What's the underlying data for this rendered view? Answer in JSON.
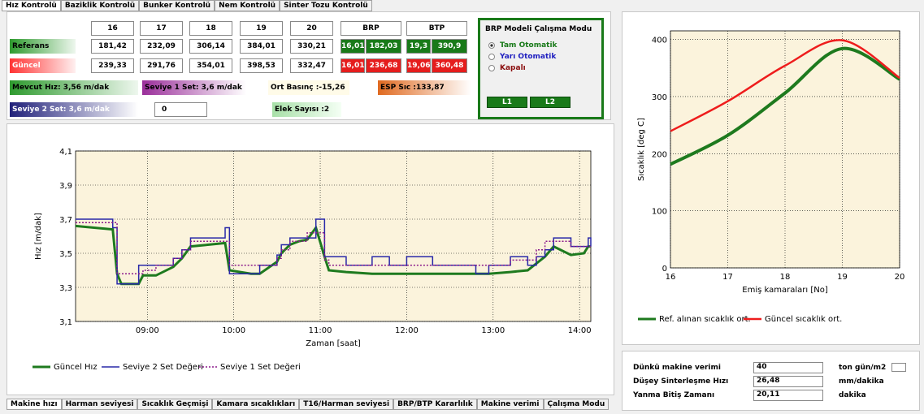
{
  "tabs_top": [
    "Hız Kontrolü",
    "Baziklik Kontrolü",
    "Bunker Kontrolü",
    "Nem Kontrolü",
    "Sinter Tozu Kontrolü"
  ],
  "table": {
    "columns": [
      "16",
      "17",
      "18",
      "19",
      "20",
      "BRP",
      "BTP"
    ],
    "rows": [
      {
        "label": "Referans",
        "values": [
          "181,42",
          "232,09",
          "306,14",
          "384,01",
          "330,21"
        ],
        "brp": [
          "16,01",
          "182,03"
        ],
        "btp": [
          "19,3",
          "390,9"
        ]
      },
      {
        "label": "Güncel",
        "values": [
          "239,33",
          "291,76",
          "354,01",
          "398,53",
          "332,47"
        ],
        "brp": [
          "16,01",
          "236,68"
        ],
        "btp": [
          "19,06",
          "360,48"
        ]
      }
    ]
  },
  "status": {
    "mevcut": "Mevcut Hız: 3,56 m/dak",
    "seviye1": "Seviye 1 Set: 3,6 m/dak",
    "basinc": "Ort Basınç :-15,26",
    "esp": "ESP Sıc :133,87",
    "seviye2": "Seviye 2 Set: 3,6 m/dak",
    "input": "0",
    "elek": "Elek Sayısı :2"
  },
  "mode_panel": {
    "title": "BRP Modeli Çalışma Modu",
    "options": [
      "Tam Otomatik",
      "Yarı Otomatik",
      "Kapalı"
    ],
    "buttons": [
      "L1",
      "L2"
    ]
  },
  "chart_data": [
    {
      "type": "line",
      "xlabel": "Zaman [saat]",
      "ylabel": "Hız [m/dak]",
      "x": [
        8.17,
        8.6,
        8.65,
        8.7,
        8.9,
        8.95,
        9.1,
        9.3,
        9.4,
        9.5,
        9.7,
        9.9,
        9.95,
        10.2,
        10.3,
        10.5,
        10.55,
        10.65,
        10.75,
        10.85,
        10.95,
        11.05,
        11.1,
        11.3,
        11.6,
        11.8,
        12.0,
        12.3,
        12.5,
        12.8,
        12.95,
        13.2,
        13.4,
        13.5,
        13.6,
        13.7,
        13.9,
        14.05,
        14.1,
        14.13
      ],
      "xlim": [
        8.17,
        14.13
      ],
      "xticks": [
        {
          "value": 9,
          "label": "09:00"
        },
        {
          "value": 10,
          "label": "10:00"
        },
        {
          "value": 11,
          "label": "11:00"
        },
        {
          "value": 12,
          "label": "12:00"
        },
        {
          "value": 13,
          "label": "13:00"
        },
        {
          "value": 14,
          "label": "14:00"
        }
      ],
      "ylim": [
        3.1,
        4.1
      ],
      "yticks": [
        {
          "value": 3.1,
          "label": "3,1"
        },
        {
          "value": 3.3,
          "label": "3,3"
        },
        {
          "value": 3.5,
          "label": "3,5"
        },
        {
          "value": 3.7,
          "label": "3,7"
        },
        {
          "value": 3.9,
          "label": "3,9"
        },
        {
          "value": 4.1,
          "label": "4,1"
        }
      ],
      "grid": true,
      "plot_bg": "#fbf3dc",
      "series": [
        {
          "name": "Güncel Hız",
          "color": "#1e7a1e",
          "width": 3,
          "values": [
            3.66,
            3.64,
            3.38,
            3.32,
            3.32,
            3.37,
            3.37,
            3.42,
            3.47,
            3.54,
            3.55,
            3.56,
            3.4,
            3.38,
            3.38,
            3.45,
            3.5,
            3.55,
            3.57,
            3.58,
            3.65,
            3.48,
            3.4,
            3.39,
            3.38,
            3.38,
            3.38,
            3.38,
            3.38,
            3.38,
            3.38,
            3.39,
            3.4,
            3.44,
            3.48,
            3.54,
            3.49,
            3.5,
            3.54,
            3.54
          ]
        },
        {
          "name": "Seviye 2 Set Değeri",
          "color": "#2828a8",
          "width": 1.5,
          "step": true,
          "values": [
            3.7,
            3.65,
            3.32,
            3.32,
            3.43,
            3.43,
            3.43,
            3.47,
            3.52,
            3.59,
            3.59,
            3.65,
            3.38,
            3.38,
            3.43,
            3.49,
            3.55,
            3.59,
            3.59,
            3.59,
            3.7,
            3.48,
            3.48,
            3.43,
            3.48,
            3.43,
            3.48,
            3.43,
            3.43,
            3.38,
            3.43,
            3.48,
            3.43,
            3.48,
            3.52,
            3.59,
            3.54,
            3.54,
            3.59,
            3.54
          ]
        },
        {
          "name": "Seviye 1 Set Değeri",
          "color": "#8b1a8b",
          "width": 1.5,
          "step": true,
          "dotted": true,
          "values": [
            3.68,
            3.68,
            3.38,
            3.38,
            3.38,
            3.4,
            3.43,
            3.47,
            3.52,
            3.57,
            3.57,
            3.57,
            3.43,
            3.43,
            3.43,
            3.47,
            3.52,
            3.57,
            3.57,
            3.62,
            3.62,
            3.46,
            3.43,
            3.43,
            3.43,
            3.43,
            3.43,
            3.43,
            3.43,
            3.43,
            3.43,
            3.46,
            3.46,
            3.52,
            3.57,
            3.57,
            3.54,
            3.54,
            3.54,
            3.54
          ]
        }
      ]
    },
    {
      "type": "line",
      "xlabel": "Emiş kamaraları [No]",
      "ylabel": "Sıcaklık [deg C]",
      "x": [
        16,
        17,
        18,
        19,
        20
      ],
      "xlim": [
        16,
        20
      ],
      "xticks": [
        16,
        17,
        18,
        19,
        20
      ],
      "ylim": [
        0,
        415
      ],
      "yticks": [
        0,
        100,
        200,
        300,
        400
      ],
      "grid": true,
      "smooth": true,
      "plot_bg": "#fbf3dc",
      "series": [
        {
          "name": "Ref. alınan sıcaklık ort.",
          "color": "#1e7a1e",
          "width": 4,
          "values": [
            181.42,
            232.09,
            306.14,
            384.01,
            330.21
          ]
        },
        {
          "name": "Güncel sıcaklık ort.",
          "color": "#ee1c1c",
          "width": 2.5,
          "values": [
            239.33,
            291.76,
            354.01,
            398.53,
            332.47
          ]
        }
      ]
    }
  ],
  "efficiency": {
    "rows": [
      {
        "label": "Dünkü makine verimi",
        "value": "40",
        "unit": "ton gün/m2"
      },
      {
        "label": "Düşey Sinterleşme Hızı",
        "value": "26,48",
        "unit": "mm/dakika"
      },
      {
        "label": "Yanma Bitiş Zamanı",
        "value": "20,11",
        "unit": "dakika"
      }
    ]
  },
  "tabs_bottom": [
    "Makine hızı",
    "Harman seviyesi",
    "Sıcaklık Geçmişi",
    "Kamara sıcaklıkları",
    "T16/Harman seviyesi",
    "BRP/BTP Kararlılık",
    "Makine verimi",
    "Çalışma Modu"
  ]
}
